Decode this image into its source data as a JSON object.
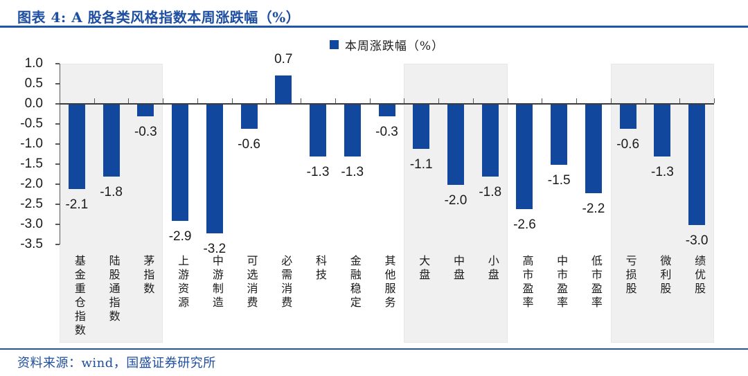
{
  "header": {
    "title": "图表 4:  A 股各类风格指数本周涨跌幅（%）"
  },
  "legend": {
    "label": "本周涨跌幅（%）"
  },
  "footer": {
    "source": "资料来源：wind，国盛证券研究所"
  },
  "colors": {
    "bar": "#11489D",
    "title_blue": "#1D4EA1",
    "rule_blue": "#1D55A8",
    "band_gray": "#F0F0F0",
    "band_border": "#E7E7E6",
    "axis_gray": "#595959",
    "zero_line": "#3C3C3C",
    "label_text": "#1A1A1A"
  },
  "chart_data": {
    "type": "bar",
    "title": "A 股各类风格指数本周涨跌幅（%）",
    "series": [
      {
        "name": "本周涨跌幅（%）",
        "values": [
          -2.1,
          -1.8,
          -0.3,
          -2.9,
          -3.2,
          -0.6,
          0.7,
          -1.3,
          -1.3,
          -0.3,
          -1.1,
          -2.0,
          -1.8,
          -2.6,
          -1.5,
          -2.2,
          -0.6,
          -1.3,
          -3.0
        ]
      }
    ],
    "categories": [
      "基金重仓指数",
      "陆股通指数",
      "茅指数",
      "上游资源",
      "中游制造",
      "可选消费",
      "必需消费",
      "科技",
      "金融稳定",
      "其他服务",
      "大盘",
      "中盘",
      "小盘",
      "高市盈率",
      "中市盈率",
      "低市盈率",
      "亏损股",
      "微利股",
      "绩优股"
    ],
    "data_labels": [
      "-2.1",
      "-1.8",
      "-0.3",
      "-2.9",
      "-3.2",
      "-0.6",
      "0.7",
      "-1.3",
      "-1.3",
      "-0.3",
      "-1.1",
      "-2.0",
      "-1.8",
      "-2.6",
      "-1.5",
      "-2.2",
      "-0.6",
      "-1.3",
      "-3.0"
    ],
    "ylim": [
      -3.5,
      1.0
    ],
    "ytick_step": 0.5,
    "ytick_labels": [
      "1.0",
      "0.5",
      "0.0",
      "-0.5",
      "-1.0",
      "-1.5",
      "-2.0",
      "-2.5",
      "-3.0",
      "-3.5"
    ],
    "xlabel": "",
    "ylabel": "",
    "grid": false,
    "legend_position": "top-center",
    "value_label_position": "outside-end",
    "background_bands": [
      {
        "from_index": 0,
        "to_index": 2,
        "shaded": true
      },
      {
        "from_index": 3,
        "to_index": 9,
        "shaded": false
      },
      {
        "from_index": 10,
        "to_index": 12,
        "shaded": true
      },
      {
        "from_index": 13,
        "to_index": 15,
        "shaded": false
      },
      {
        "from_index": 16,
        "to_index": 18,
        "shaded": true
      }
    ]
  }
}
